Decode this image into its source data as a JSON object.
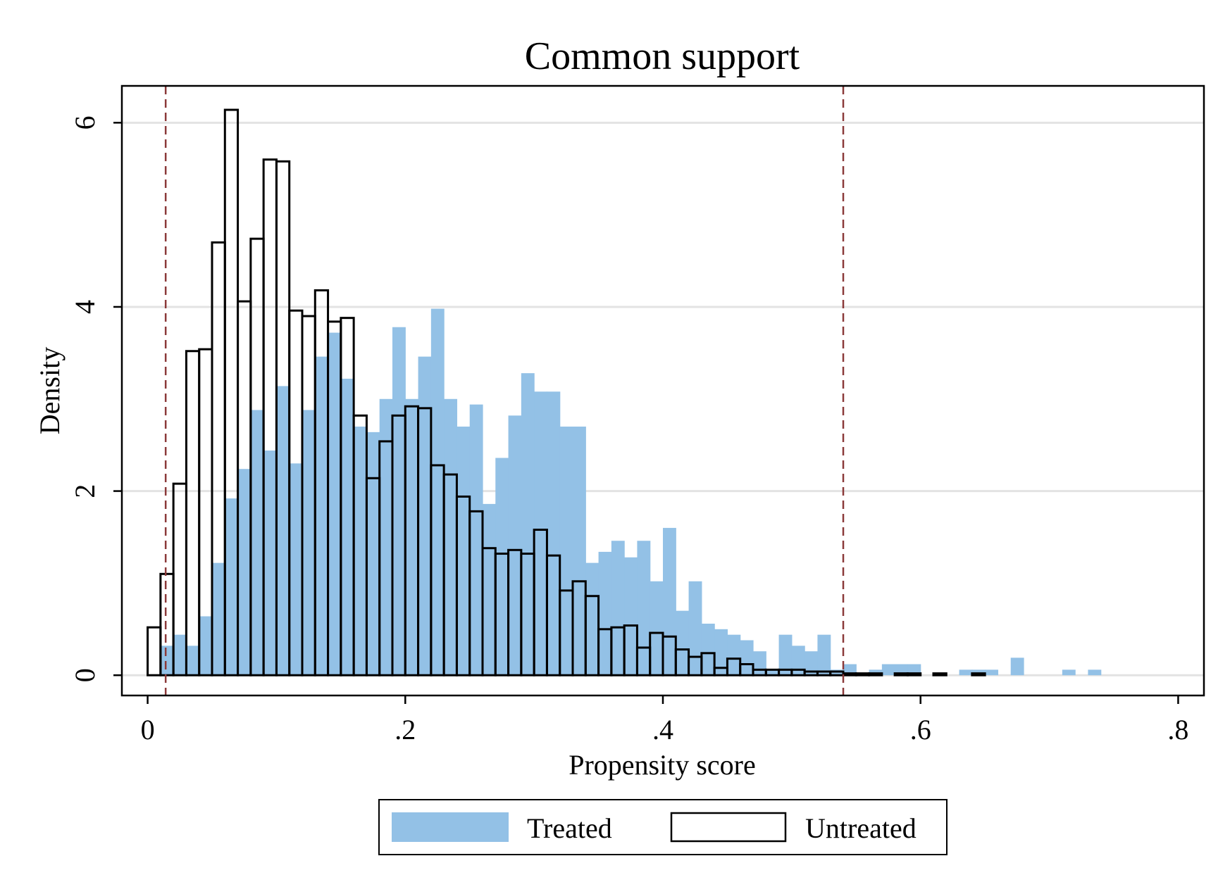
{
  "chart_data": {
    "type": "bar",
    "title": "Common support",
    "xlabel": "Propensity score",
    "ylabel": "Density",
    "xlim": [
      -0.02,
      0.82
    ],
    "ylim": [
      -0.22,
      6.4
    ],
    "bin_width": 0.01,
    "grid": "horizontal",
    "legend_position": "bottom",
    "x_ticks": [
      {
        "value": 0,
        "label": "0"
      },
      {
        "value": 0.2,
        "label": ".2"
      },
      {
        "value": 0.4,
        "label": ".4"
      },
      {
        "value": 0.6,
        "label": ".6"
      },
      {
        "value": 0.8,
        "label": ".8"
      }
    ],
    "y_ticks": [
      {
        "value": 0,
        "label": "0"
      },
      {
        "value": 2,
        "label": "2"
      },
      {
        "value": 4,
        "label": "4"
      },
      {
        "value": 6,
        "label": "6"
      }
    ],
    "reference_lines": [
      {
        "axis": "x",
        "value": 0.014,
        "style": "dashed",
        "color": "#8b3a3a"
      },
      {
        "axis": "x",
        "value": 0.54,
        "style": "dashed",
        "color": "#8b3a3a"
      }
    ],
    "series": [
      {
        "name": "Treated",
        "style": "filled",
        "color": "#93c1e6",
        "bins": [
          {
            "x": 0.01,
            "y": 0.32
          },
          {
            "x": 0.02,
            "y": 0.44
          },
          {
            "x": 0.03,
            "y": 0.32
          },
          {
            "x": 0.04,
            "y": 0.64
          },
          {
            "x": 0.05,
            "y": 1.22
          },
          {
            "x": 0.06,
            "y": 1.92
          },
          {
            "x": 0.07,
            "y": 2.24
          },
          {
            "x": 0.08,
            "y": 2.88
          },
          {
            "x": 0.09,
            "y": 2.44
          },
          {
            "x": 0.1,
            "y": 3.14
          },
          {
            "x": 0.11,
            "y": 2.3
          },
          {
            "x": 0.12,
            "y": 2.88
          },
          {
            "x": 0.13,
            "y": 3.46
          },
          {
            "x": 0.14,
            "y": 3.72
          },
          {
            "x": 0.15,
            "y": 3.22
          },
          {
            "x": 0.16,
            "y": 2.7
          },
          {
            "x": 0.17,
            "y": 2.64
          },
          {
            "x": 0.18,
            "y": 3.0
          },
          {
            "x": 0.19,
            "y": 3.78
          },
          {
            "x": 0.2,
            "y": 3.0
          },
          {
            "x": 0.21,
            "y": 3.46
          },
          {
            "x": 0.22,
            "y": 3.98
          },
          {
            "x": 0.23,
            "y": 3.0
          },
          {
            "x": 0.24,
            "y": 2.7
          },
          {
            "x": 0.25,
            "y": 2.94
          },
          {
            "x": 0.26,
            "y": 1.86
          },
          {
            "x": 0.27,
            "y": 2.36
          },
          {
            "x": 0.28,
            "y": 2.82
          },
          {
            "x": 0.29,
            "y": 3.28
          },
          {
            "x": 0.3,
            "y": 3.08
          },
          {
            "x": 0.31,
            "y": 3.08
          },
          {
            "x": 0.32,
            "y": 2.7
          },
          {
            "x": 0.33,
            "y": 2.7
          },
          {
            "x": 0.34,
            "y": 1.22
          },
          {
            "x": 0.35,
            "y": 1.34
          },
          {
            "x": 0.36,
            "y": 1.46
          },
          {
            "x": 0.37,
            "y": 1.28
          },
          {
            "x": 0.38,
            "y": 1.46
          },
          {
            "x": 0.39,
            "y": 1.02
          },
          {
            "x": 0.4,
            "y": 1.6
          },
          {
            "x": 0.41,
            "y": 0.7
          },
          {
            "x": 0.42,
            "y": 1.02
          },
          {
            "x": 0.43,
            "y": 0.56
          },
          {
            "x": 0.44,
            "y": 0.5
          },
          {
            "x": 0.45,
            "y": 0.44
          },
          {
            "x": 0.46,
            "y": 0.38
          },
          {
            "x": 0.47,
            "y": 0.26
          },
          {
            "x": 0.48,
            "y": 0.06
          },
          {
            "x": 0.49,
            "y": 0.44
          },
          {
            "x": 0.5,
            "y": 0.32
          },
          {
            "x": 0.51,
            "y": 0.26
          },
          {
            "x": 0.52,
            "y": 0.44
          },
          {
            "x": 0.53,
            "y": 0.06
          },
          {
            "x": 0.54,
            "y": 0.12
          },
          {
            "x": 0.56,
            "y": 0.06
          },
          {
            "x": 0.57,
            "y": 0.12
          },
          {
            "x": 0.58,
            "y": 0.12
          },
          {
            "x": 0.59,
            "y": 0.12
          },
          {
            "x": 0.63,
            "y": 0.06
          },
          {
            "x": 0.64,
            "y": 0.06
          },
          {
            "x": 0.65,
            "y": 0.06
          },
          {
            "x": 0.67,
            "y": 0.19
          },
          {
            "x": 0.71,
            "y": 0.06
          },
          {
            "x": 0.73,
            "y": 0.06
          }
        ]
      },
      {
        "name": "Untreated",
        "style": "outline",
        "color": "#000000",
        "bins": [
          {
            "x": 0.0,
            "y": 0.52
          },
          {
            "x": 0.01,
            "y": 1.1
          },
          {
            "x": 0.02,
            "y": 2.08
          },
          {
            "x": 0.03,
            "y": 3.52
          },
          {
            "x": 0.04,
            "y": 3.54
          },
          {
            "x": 0.05,
            "y": 4.7
          },
          {
            "x": 0.06,
            "y": 6.14
          },
          {
            "x": 0.07,
            "y": 4.06
          },
          {
            "x": 0.08,
            "y": 4.74
          },
          {
            "x": 0.09,
            "y": 5.6
          },
          {
            "x": 0.1,
            "y": 5.58
          },
          {
            "x": 0.11,
            "y": 3.96
          },
          {
            "x": 0.12,
            "y": 3.9
          },
          {
            "x": 0.13,
            "y": 4.18
          },
          {
            "x": 0.14,
            "y": 3.84
          },
          {
            "x": 0.15,
            "y": 3.88
          },
          {
            "x": 0.16,
            "y": 2.82
          },
          {
            "x": 0.17,
            "y": 2.14
          },
          {
            "x": 0.18,
            "y": 2.54
          },
          {
            "x": 0.19,
            "y": 2.82
          },
          {
            "x": 0.2,
            "y": 2.92
          },
          {
            "x": 0.21,
            "y": 2.9
          },
          {
            "x": 0.22,
            "y": 2.28
          },
          {
            "x": 0.23,
            "y": 2.18
          },
          {
            "x": 0.24,
            "y": 1.94
          },
          {
            "x": 0.25,
            "y": 1.78
          },
          {
            "x": 0.26,
            "y": 1.38
          },
          {
            "x": 0.27,
            "y": 1.32
          },
          {
            "x": 0.28,
            "y": 1.36
          },
          {
            "x": 0.29,
            "y": 1.32
          },
          {
            "x": 0.3,
            "y": 1.58
          },
          {
            "x": 0.31,
            "y": 1.3
          },
          {
            "x": 0.32,
            "y": 0.92
          },
          {
            "x": 0.33,
            "y": 1.02
          },
          {
            "x": 0.34,
            "y": 0.86
          },
          {
            "x": 0.35,
            "y": 0.5
          },
          {
            "x": 0.36,
            "y": 0.52
          },
          {
            "x": 0.37,
            "y": 0.54
          },
          {
            "x": 0.38,
            "y": 0.3
          },
          {
            "x": 0.39,
            "y": 0.46
          },
          {
            "x": 0.4,
            "y": 0.42
          },
          {
            "x": 0.41,
            "y": 0.28
          },
          {
            "x": 0.42,
            "y": 0.2
          },
          {
            "x": 0.43,
            "y": 0.24
          },
          {
            "x": 0.44,
            "y": 0.08
          },
          {
            "x": 0.45,
            "y": 0.18
          },
          {
            "x": 0.46,
            "y": 0.12
          },
          {
            "x": 0.47,
            "y": 0.06
          },
          {
            "x": 0.48,
            "y": 0.06
          },
          {
            "x": 0.49,
            "y": 0.06
          },
          {
            "x": 0.5,
            "y": 0.06
          },
          {
            "x": 0.51,
            "y": 0.04
          },
          {
            "x": 0.52,
            "y": 0.04
          },
          {
            "x": 0.53,
            "y": 0.04
          },
          {
            "x": 0.54,
            "y": 0.02
          },
          {
            "x": 0.55,
            "y": 0.02
          },
          {
            "x": 0.56,
            "y": 0.02
          },
          {
            "x": 0.58,
            "y": 0.02
          },
          {
            "x": 0.59,
            "y": 0.02
          },
          {
            "x": 0.61,
            "y": 0.02
          },
          {
            "x": 0.64,
            "y": 0.02
          }
        ]
      }
    ]
  }
}
